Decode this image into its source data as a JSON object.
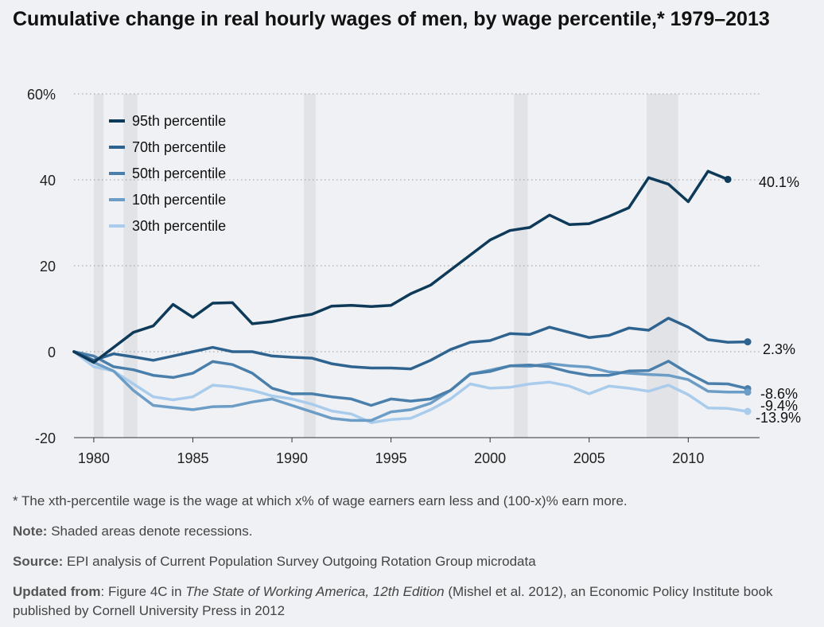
{
  "chart_data": {
    "type": "line",
    "title": "Cumulative change in real hourly wages of men, by wage percentile,* 1979–2013",
    "x": [
      1979,
      1980,
      1981,
      1982,
      1983,
      1984,
      1985,
      1986,
      1987,
      1988,
      1989,
      1990,
      1991,
      1992,
      1993,
      1994,
      1995,
      1996,
      1997,
      1998,
      1999,
      2000,
      2001,
      2002,
      2003,
      2004,
      2005,
      2006,
      2007,
      2008,
      2009,
      2010,
      2011,
      2012,
      2013
    ],
    "xlim": [
      1979,
      2013
    ],
    "ylim": [
      -20,
      60
    ],
    "x_ticks": [
      1980,
      1985,
      1990,
      1995,
      2000,
      2005,
      2010
    ],
    "x_tick_labels": [
      "1980",
      "1985",
      "1990",
      "1995",
      "2000",
      "2005",
      "2010"
    ],
    "y_ticks": [
      -20,
      0,
      20,
      40,
      60
    ],
    "y_tick_labels": [
      "-20",
      "0",
      "20",
      "40",
      "60%"
    ],
    "grid": "horizontal-dotted",
    "legend_position": "top-left",
    "recessions": [
      [
        1980.0,
        1980.5
      ],
      [
        1981.5,
        1982.2
      ],
      [
        1990.6,
        1991.2
      ],
      [
        2001.2,
        2001.9
      ],
      [
        2007.9,
        2009.5
      ]
    ],
    "series": [
      {
        "name": "95th percentile",
        "color": "#0e3a59",
        "values": [
          0,
          -2.5,
          1,
          4.5,
          6,
          11,
          8,
          11.3,
          11.4,
          6.5,
          7,
          8,
          8.7,
          10.6,
          10.8,
          10.5,
          10.8,
          13.5,
          15.5,
          19,
          22.5,
          26,
          28.2,
          28.9,
          31.8,
          29.6,
          29.8,
          31.5,
          33.5,
          40.5,
          39,
          34.9,
          42,
          40.1,
          null
        ],
        "end_label": "40.1%"
      },
      {
        "name": "70th percentile",
        "color": "#2e6390",
        "values": [
          0,
          -2,
          -0.5,
          -1.2,
          -2,
          -1,
          0,
          1,
          0,
          0,
          -1,
          -1.3,
          -1.5,
          -2.8,
          -3.5,
          -3.8,
          -3.8,
          -4,
          -2,
          0.5,
          2.2,
          2.6,
          4.2,
          4,
          5.7,
          4.5,
          3.3,
          3.8,
          5.5,
          5,
          7.8,
          5.7,
          2.8,
          2.2,
          2.3
        ],
        "end_label": "2.3%"
      },
      {
        "name": "50th percentile",
        "color": "#4a7fab",
        "values": [
          0,
          -1,
          -3.5,
          -4.2,
          -5.5,
          -6,
          -5,
          -2.3,
          -3,
          -5,
          -8.5,
          -9.8,
          -9.8,
          -10.5,
          -11,
          -12.5,
          -11,
          -11.5,
          -11,
          -9,
          -5.2,
          -4.6,
          -3.3,
          -3.1,
          -3.5,
          -4.7,
          -5.5,
          -5.5,
          -4.5,
          -4.4,
          -2.2,
          -5,
          -7.4,
          -7.5,
          -8.6
        ],
        "end_label": "-8.6%"
      },
      {
        "name": "10th percentile",
        "color": "#6c9dc6",
        "values": [
          0,
          -2.5,
          -4.5,
          -9,
          -12.5,
          -13,
          -13.5,
          -12.8,
          -12.7,
          -11.7,
          -11,
          -12.5,
          -14,
          -15.5,
          -16,
          -16,
          -14,
          -13.5,
          -12,
          -9,
          -5.2,
          -4.3,
          -3.3,
          -3.4,
          -2.8,
          -3.3,
          -3.6,
          -4.7,
          -5,
          -5.3,
          -5.5,
          -6.5,
          -9.2,
          -9.4,
          -9.4
        ],
        "end_label": "-9.4%"
      },
      {
        "name": "30th percentile",
        "color": "#a9ccec",
        "values": [
          0,
          -3.5,
          -4.5,
          -7.5,
          -10.5,
          -11.2,
          -10.5,
          -7.8,
          -8.2,
          -9,
          -10.3,
          -11,
          -12.2,
          -13.8,
          -14.5,
          -16.5,
          -15.8,
          -15.5,
          -13.5,
          -11,
          -7.5,
          -8.5,
          -8.3,
          -7.5,
          -7.1,
          -8,
          -9.8,
          -8,
          -8.5,
          -9.2,
          -7.8,
          -10,
          -13.1,
          -13.2,
          -13.9
        ],
        "end_label": "-13.9%"
      }
    ]
  },
  "notes": {
    "footnote": "* The xth-percentile wage is the wage at which x% of wage earners earn less and (100-x)% earn more.",
    "note_label": "Note:",
    "note_text": "Shaded areas denote recessions.",
    "source_label": "Source:",
    "source_text": "EPI analysis of Current Population Survey Outgoing Rotation Group microdata",
    "updated_label": "Updated from",
    "updated_pre": ": Figure 4C in ",
    "updated_italic": "The State of Working America, 12th Edition",
    "updated_post": " (Mishel et al. 2012), an Economic Policy Institute book published by Cornell University Press in 2012"
  }
}
